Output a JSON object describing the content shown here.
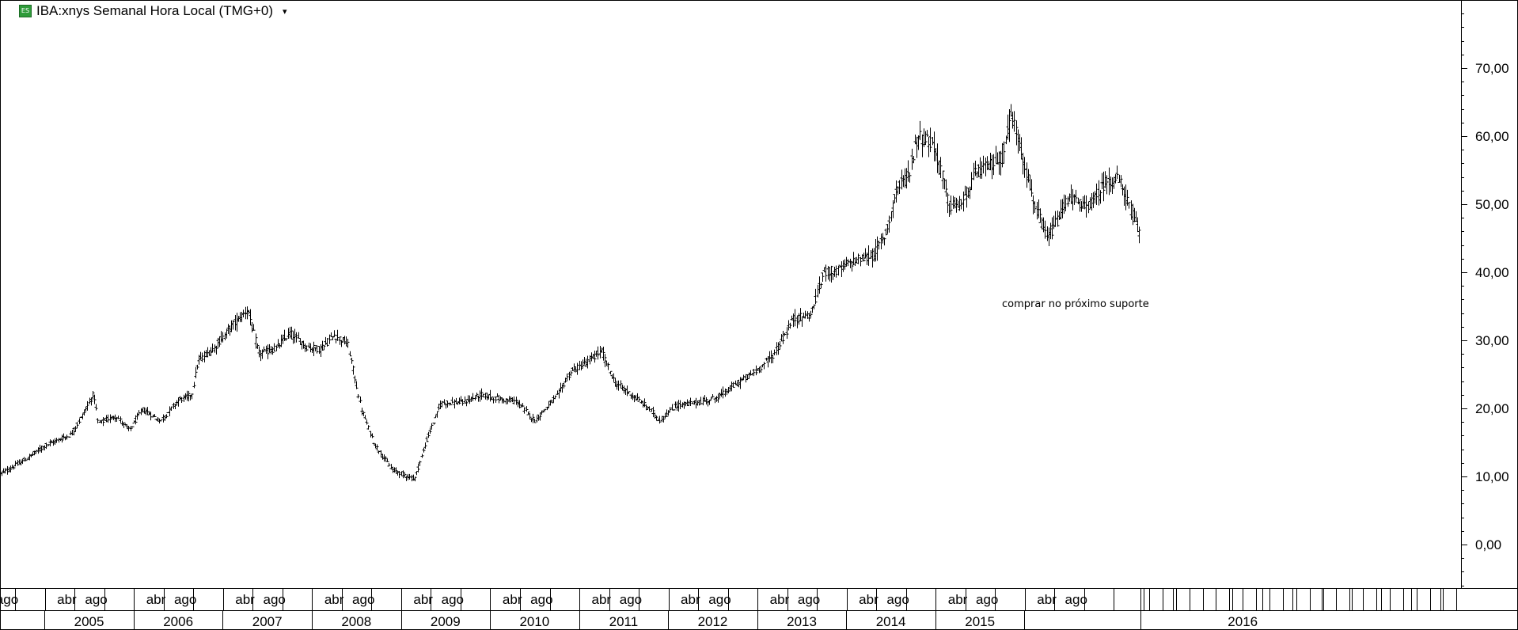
{
  "header": {
    "icon": "exchange-badge-icon",
    "icon_text": "ES",
    "title": "IBA:xnys Semanal Hora Local (TMG+0)",
    "dropdown_icon": "caret-down-icon"
  },
  "annotation": "comprar no próximo suporte",
  "colors": {
    "background": "#ffffff",
    "bars": "#000000",
    "grid": "#000000"
  },
  "chart_data": {
    "type": "ohlc",
    "title": "",
    "ylim": [
      -6,
      80
    ],
    "y_ticks": [
      "0,00",
      "10,00",
      "20,00",
      "30,00",
      "40,00",
      "50,00",
      "60,00",
      "70,00"
    ],
    "y_tick_values": [
      0,
      10,
      20,
      30,
      40,
      50,
      60,
      70
    ],
    "grid": false,
    "months_row": [
      {
        "label": "ago",
        "t": 2004.58
      },
      {
        "label": "abr",
        "t": 2005.25
      },
      {
        "label": "ago",
        "t": 2005.58
      },
      {
        "label": "abr",
        "t": 2006.25
      },
      {
        "label": "ago",
        "t": 2006.58
      },
      {
        "label": "abr",
        "t": 2007.25
      },
      {
        "label": "ago",
        "t": 2007.58
      },
      {
        "label": "abr",
        "t": 2008.25
      },
      {
        "label": "ago",
        "t": 2008.58
      },
      {
        "label": "abr",
        "t": 2009.25
      },
      {
        "label": "ago",
        "t": 2009.58
      },
      {
        "label": "abr",
        "t": 2010.25
      },
      {
        "label": "ago",
        "t": 2010.58
      },
      {
        "label": "abr",
        "t": 2011.25
      },
      {
        "label": "ago",
        "t": 2011.58
      },
      {
        "label": "abr",
        "t": 2012.25
      },
      {
        "label": "ago",
        "t": 2012.58
      },
      {
        "label": "abr",
        "t": 2013.25
      },
      {
        "label": "ago",
        "t": 2013.58
      },
      {
        "label": "abr",
        "t": 2014.25
      },
      {
        "label": "ago",
        "t": 2014.58
      },
      {
        "label": "abr",
        "t": 2015.25
      },
      {
        "label": "ago",
        "t": 2015.58
      },
      {
        "label": "abr",
        "t": 2016.25
      },
      {
        "label": "ago",
        "t": 2016.58
      }
    ],
    "years_row": [
      "2005",
      "2006",
      "2007",
      "2008",
      "2009",
      "2010",
      "2011",
      "2012",
      "2013",
      "2014",
      "2015",
      "2016"
    ],
    "x_range": [
      2004.5,
      2020.9
    ],
    "series": [
      {
        "values": [
          [
            2004.5,
            10.3
          ],
          [
            2004.8,
            12.6
          ],
          [
            2005.0,
            14.5
          ],
          [
            2005.3,
            16.2
          ],
          [
            2005.45,
            19.6
          ],
          [
            2005.55,
            22.2
          ],
          [
            2005.6,
            17.8
          ],
          [
            2005.8,
            18.9
          ],
          [
            2005.95,
            16.8
          ],
          [
            2006.1,
            19.9
          ],
          [
            2006.3,
            18.1
          ],
          [
            2006.5,
            21.2
          ],
          [
            2006.65,
            22.0
          ],
          [
            2006.72,
            26.9
          ],
          [
            2006.9,
            28.9
          ],
          [
            2007.1,
            32.1
          ],
          [
            2007.28,
            34.6
          ],
          [
            2007.4,
            28.0
          ],
          [
            2007.6,
            28.8
          ],
          [
            2007.75,
            31.1
          ],
          [
            2007.95,
            29.0
          ],
          [
            2008.1,
            28.7
          ],
          [
            2008.25,
            30.8
          ],
          [
            2008.4,
            29.5
          ],
          [
            2008.55,
            20.1
          ],
          [
            2008.7,
            14.8
          ],
          [
            2008.9,
            11.0
          ],
          [
            2009.15,
            9.6
          ],
          [
            2009.3,
            15.8
          ],
          [
            2009.45,
            20.8
          ],
          [
            2009.7,
            20.9
          ],
          [
            2009.9,
            22.0
          ],
          [
            2010.1,
            21.4
          ],
          [
            2010.3,
            21.0
          ],
          [
            2010.5,
            18.2
          ],
          [
            2010.75,
            21.8
          ],
          [
            2010.9,
            25.3
          ],
          [
            2011.1,
            26.9
          ],
          [
            2011.25,
            28.4
          ],
          [
            2011.4,
            23.8
          ],
          [
            2011.6,
            21.9
          ],
          [
            2011.8,
            19.8
          ],
          [
            2011.9,
            18.2
          ],
          [
            2012.1,
            20.5
          ],
          [
            2012.35,
            20.9
          ],
          [
            2012.55,
            21.6
          ],
          [
            2012.8,
            23.9
          ],
          [
            2013.0,
            25.6
          ],
          [
            2013.2,
            28.2
          ],
          [
            2013.4,
            33.1
          ],
          [
            2013.6,
            33.8
          ],
          [
            2013.75,
            40.1
          ],
          [
            2013.9,
            40.2
          ],
          [
            2014.1,
            41.8
          ],
          [
            2014.3,
            42.4
          ],
          [
            2014.45,
            45.9
          ],
          [
            2014.55,
            51.8
          ],
          [
            2014.7,
            54.4
          ],
          [
            2014.8,
            60.1
          ],
          [
            2014.95,
            59.1
          ],
          [
            2015.05,
            55.8
          ],
          [
            2015.15,
            49.6
          ],
          [
            2015.3,
            50.1
          ],
          [
            2015.45,
            54.6
          ],
          [
            2015.6,
            55.6
          ],
          [
            2015.75,
            57.0
          ],
          [
            2015.85,
            63.2
          ],
          [
            2015.95,
            58.6
          ],
          [
            2016.1,
            50.3
          ],
          [
            2016.25,
            45.0
          ],
          [
            2016.35,
            47.1
          ],
          [
            2016.5,
            51.3
          ],
          [
            2016.65,
            49.5
          ],
          [
            2016.8,
            50.8
          ],
          [
            2016.9,
            53.2
          ],
          [
            2017.05,
            53.7
          ],
          [
            2017.2,
            48.9
          ],
          [
            2017.28,
            45.9
          ]
        ]
      }
    ]
  }
}
